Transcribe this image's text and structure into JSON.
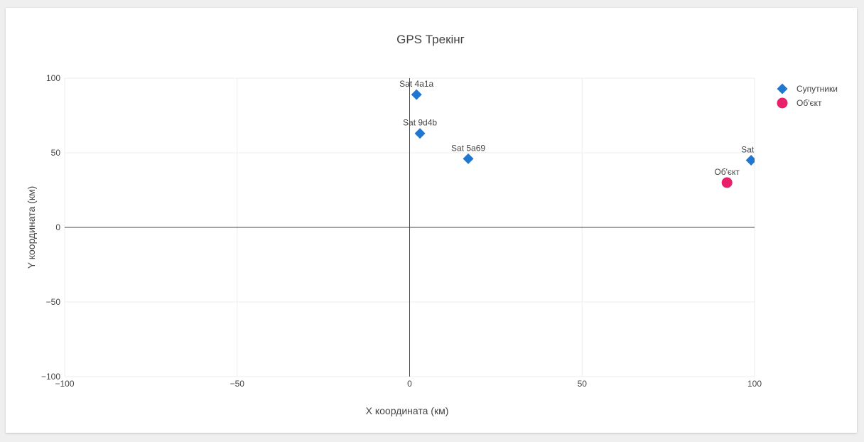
{
  "chart_data": {
    "type": "scatter",
    "title": "GPS Трекінг",
    "xlabel": "X координата (км)",
    "ylabel": "Y координата (км)",
    "xlim": [
      -100,
      100
    ],
    "ylim": [
      -100,
      100
    ],
    "xticks": [
      -100,
      -50,
      0,
      50,
      100
    ],
    "yticks": [
      -100,
      -50,
      0,
      50,
      100
    ],
    "xtick_labels": [
      "−100",
      "−50",
      "0",
      "50",
      "100"
    ],
    "ytick_labels": [
      "−100",
      "−50",
      "0",
      "50",
      "100"
    ],
    "grid": true,
    "legend_position": "top-right",
    "series": [
      {
        "name": "Супутники",
        "marker": "diamond",
        "color": "#1f77d0",
        "points": [
          {
            "x": 2,
            "y": 89,
            "label": "Sat 4a1a"
          },
          {
            "x": 3,
            "y": 63,
            "label": "Sat 9d4b"
          },
          {
            "x": 17,
            "y": 46,
            "label": "Sat 5a69"
          },
          {
            "x": 99,
            "y": 45,
            "label": "Sat b"
          }
        ]
      },
      {
        "name": "Об'єкт",
        "marker": "circle",
        "color": "#e8206a",
        "points": [
          {
            "x": 92,
            "y": 30,
            "label": "Об'єкт"
          }
        ]
      }
    ]
  }
}
